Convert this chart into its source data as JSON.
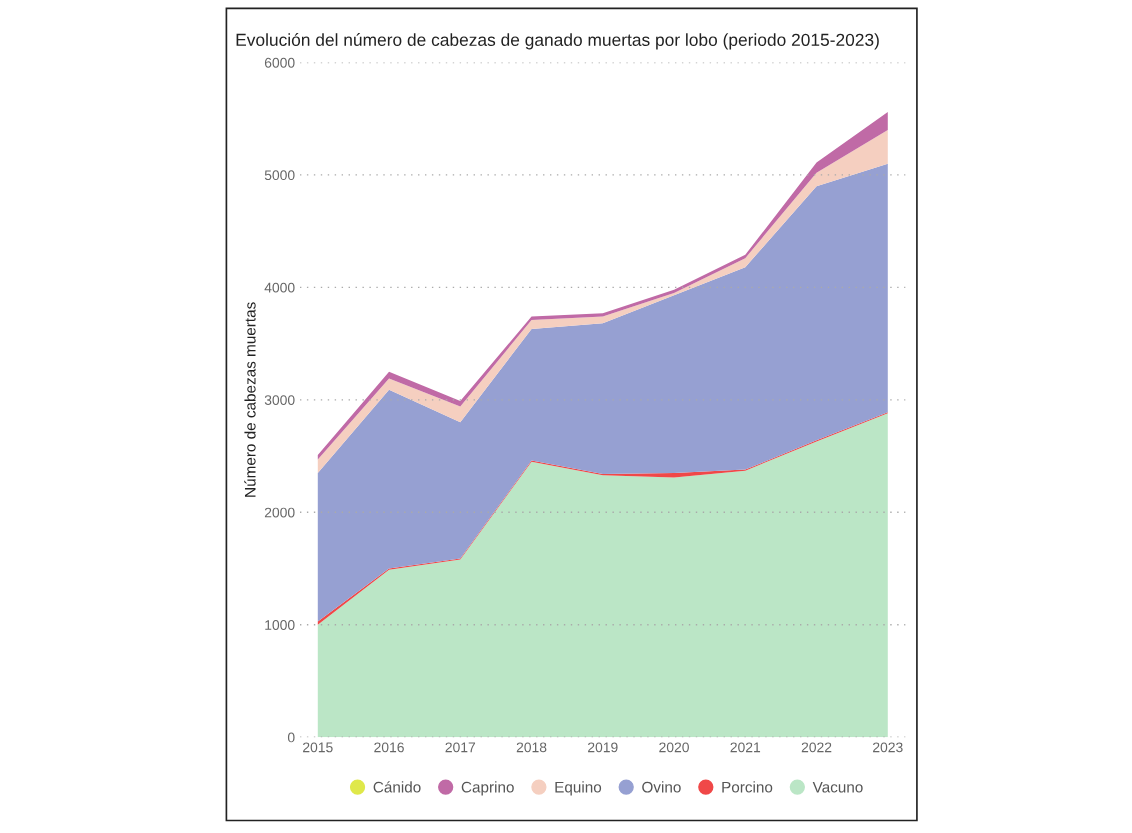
{
  "chart_data": {
    "type": "area",
    "stacked": true,
    "title": "Evolución del número de cabezas de ganado muertas por lobo (periodo 2015-2023)",
    "ylabel": "Número de cabezas muertas",
    "categories": [
      "2015",
      "2016",
      "2017",
      "2018",
      "2019",
      "2020",
      "2021",
      "2022",
      "2023"
    ],
    "series": [
      {
        "name": "Vacuno",
        "color": "#bbe6c6",
        "values": [
          1000,
          1490,
          1580,
          2450,
          2330,
          2310,
          2370,
          2630,
          2880
        ]
      },
      {
        "name": "Porcino",
        "color": "#f04848",
        "values": [
          30,
          10,
          10,
          10,
          10,
          40,
          10,
          10,
          10
        ]
      },
      {
        "name": "Ovino",
        "color": "#96a0d2",
        "values": [
          1320,
          1590,
          1210,
          1170,
          1340,
          1580,
          1800,
          2260,
          2210
        ]
      },
      {
        "name": "Equino",
        "color": "#f5cfc0",
        "values": [
          120,
          100,
          140,
          80,
          60,
          20,
          80,
          120,
          300
        ]
      },
      {
        "name": "Caprino",
        "color": "#c06aa6",
        "values": [
          40,
          60,
          50,
          30,
          30,
          30,
          30,
          90,
          160
        ]
      },
      {
        "name": "Cánido",
        "color": "#dfe84a",
        "values": [
          null,
          null,
          null,
          null,
          null,
          null,
          null,
          null,
          null
        ]
      }
    ],
    "ylim": [
      0,
      6000
    ],
    "yticks": [
      0,
      1000,
      2000,
      3000,
      4000,
      5000,
      6000
    ],
    "grid": "y",
    "legend": "bottom"
  }
}
